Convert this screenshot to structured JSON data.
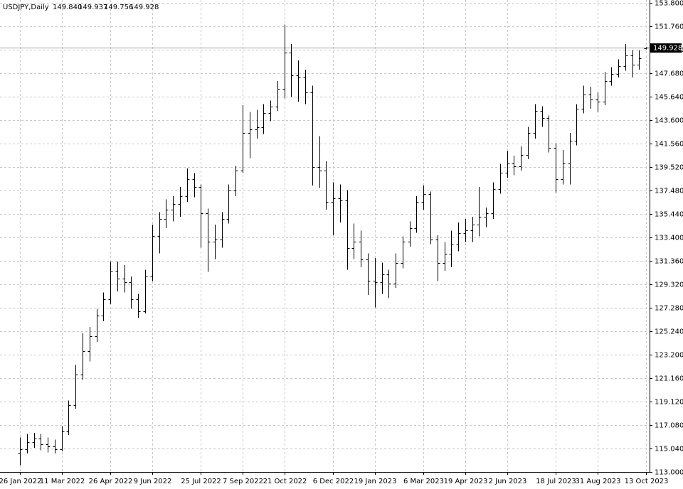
{
  "chart_data": {
    "type": "ohlc",
    "header": {
      "symbol": "USDJPY,Daily",
      "open": "149.840",
      "high": "149.937",
      "low": "149.756",
      "close": "149.928"
    },
    "last_price": {
      "value": 149.928,
      "label": "149.928"
    },
    "grid": true,
    "color": "#000000",
    "categories": [
      "26 Jan 2022",
      null,
      null,
      null,
      null,
      null,
      "11 Mar 2022",
      null,
      null,
      null,
      null,
      null,
      null,
      "26 Apr 2022",
      null,
      null,
      null,
      null,
      null,
      "9 Jun 2022",
      null,
      null,
      null,
      null,
      null,
      null,
      "25 Jul 2022",
      null,
      null,
      null,
      null,
      null,
      "7 Sep 2022",
      null,
      null,
      null,
      null,
      null,
      "21 Oct 2022",
      null,
      null,
      null,
      null,
      null,
      null,
      "6 Dec 2022",
      null,
      null,
      null,
      null,
      null,
      "19 Jan 2023",
      null,
      null,
      null,
      null,
      null,
      null,
      "6 Mar 2023",
      null,
      null,
      null,
      null,
      null,
      "19 Apr 2023",
      null,
      null,
      null,
      null,
      null,
      "2 Jun 2023",
      null,
      null,
      null,
      null,
      null,
      null,
      "18 Jul 2023",
      null,
      null,
      null,
      null,
      null,
      "31 Aug 2023",
      null,
      null,
      null,
      null,
      null,
      null,
      "13 Oct 2023"
    ],
    "open": [
      114.6,
      115.0,
      115.6,
      115.9,
      115.4,
      115.2,
      115.0,
      116.5,
      118.8,
      121.5,
      123.5,
      124.8,
      126.6,
      128.0,
      130.5,
      129.8,
      129.5,
      128.0,
      127.0,
      130.0,
      133.5,
      135.0,
      135.8,
      136.3,
      137.0,
      138.5,
      137.8,
      135.5,
      133.0,
      133.2,
      135.0,
      137.5,
      139.2,
      142.5,
      142.8,
      143.0,
      144.2,
      144.8,
      146.3,
      149.5,
      147.5,
      147.3,
      146.0,
      139.5,
      139.2,
      136.5,
      136.8,
      136.6,
      132.5,
      133.0,
      131.5,
      129.6,
      129.5,
      130.2,
      129.4,
      131.2,
      133.0,
      134.2,
      136.5,
      137.2,
      133.2,
      131.2,
      132.0,
      132.8,
      133.8,
      134.0,
      134.5,
      135.2,
      135.5,
      137.6,
      139.0,
      139.8,
      139.6,
      140.6,
      142.5,
      144.4,
      143.8,
      141.2,
      138.5,
      139.8,
      141.8,
      144.6,
      145.8,
      145.4,
      145.2,
      147.0,
      147.6,
      148.3,
      149.2,
      148.4,
      149.84
    ],
    "high": [
      116.0,
      116.3,
      116.4,
      116.3,
      116.0,
      115.8,
      117.0,
      119.2,
      122.3,
      125.1,
      125.6,
      127.2,
      128.6,
      131.3,
      131.3,
      131.0,
      130.0,
      128.5,
      130.6,
      134.5,
      135.6,
      136.7,
      137.0,
      137.8,
      139.4,
      139.0,
      138.0,
      135.9,
      134.5,
      135.6,
      138.0,
      139.6,
      144.9,
      144.3,
      144.5,
      145.0,
      145.3,
      147.0,
      151.9,
      150.2,
      148.8,
      148.0,
      146.6,
      142.2,
      140.0,
      138.2,
      138.0,
      137.5,
      134.6,
      134.0,
      132.0,
      131.6,
      131.2,
      130.6,
      132.0,
      133.5,
      134.8,
      137.0,
      137.9,
      137.4,
      133.6,
      133.0,
      134.0,
      134.7,
      135.0,
      135.2,
      137.8,
      136.0,
      138.2,
      139.8,
      140.9,
      140.5,
      141.3,
      143.0,
      145.0,
      144.8,
      144.0,
      141.6,
      141.0,
      142.5,
      145.0,
      146.6,
      146.5,
      146.0,
      147.8,
      148.2,
      148.9,
      150.2,
      149.7,
      149.7,
      149.937
    ],
    "low": [
      113.6,
      114.6,
      115.1,
      114.9,
      114.7,
      114.6,
      114.8,
      116.2,
      118.5,
      121.0,
      122.6,
      124.3,
      126.1,
      127.6,
      128.7,
      128.6,
      127.2,
      126.4,
      126.8,
      129.6,
      132.0,
      134.2,
      134.8,
      135.2,
      136.5,
      136.9,
      132.5,
      130.4,
      131.5,
      132.5,
      134.6,
      137.0,
      139.0,
      140.3,
      142.0,
      142.4,
      143.5,
      144.4,
      145.5,
      145.6,
      145.2,
      145.0,
      137.9,
      137.7,
      135.8,
      133.6,
      134.7,
      130.6,
      131.5,
      130.8,
      128.4,
      127.3,
      128.5,
      128.1,
      129.0,
      130.7,
      132.6,
      133.8,
      135.8,
      132.8,
      129.6,
      130.5,
      130.8,
      132.2,
      133.0,
      133.0,
      133.5,
      134.3,
      135.0,
      137.2,
      138.6,
      138.8,
      139.2,
      140.2,
      142.0,
      143.0,
      140.8,
      137.3,
      138.0,
      138.0,
      141.4,
      144.2,
      144.6,
      144.3,
      144.9,
      146.6,
      147.3,
      147.9,
      147.3,
      148.0,
      149.756
    ],
    "close": [
      115.0,
      115.6,
      115.9,
      115.4,
      115.2,
      115.0,
      116.5,
      118.8,
      121.5,
      123.5,
      124.8,
      126.6,
      128.0,
      130.5,
      129.8,
      129.5,
      128.0,
      127.0,
      130.0,
      133.5,
      135.0,
      135.8,
      136.3,
      137.0,
      138.5,
      137.8,
      135.5,
      133.0,
      133.2,
      135.0,
      137.5,
      139.2,
      142.5,
      142.8,
      143.0,
      144.2,
      144.8,
      146.3,
      149.5,
      147.5,
      147.3,
      146.0,
      139.5,
      139.2,
      136.5,
      136.8,
      136.6,
      132.5,
      133.0,
      131.5,
      129.6,
      129.5,
      130.2,
      129.4,
      131.2,
      133.0,
      134.2,
      136.5,
      137.2,
      133.2,
      131.2,
      132.0,
      132.8,
      133.8,
      134.0,
      134.5,
      135.2,
      135.5,
      137.6,
      139.0,
      139.8,
      139.6,
      140.6,
      142.5,
      144.4,
      143.8,
      141.2,
      138.5,
      139.8,
      141.8,
      144.6,
      145.8,
      145.4,
      145.2,
      147.0,
      147.6,
      148.3,
      149.2,
      148.4,
      149.0,
      149.928
    ],
    "ylim": [
      113.0,
      153.8
    ],
    "yticks": [
      {
        "value": 113.0,
        "label": "113.000"
      },
      {
        "value": 115.04,
        "label": "115.040"
      },
      {
        "value": 117.08,
        "label": "117.080"
      },
      {
        "value": 119.12,
        "label": "119.120"
      },
      {
        "value": 121.16,
        "label": "121.160"
      },
      {
        "value": 123.2,
        "label": "123.200"
      },
      {
        "value": 125.24,
        "label": "125.240"
      },
      {
        "value": 127.28,
        "label": "127.280"
      },
      {
        "value": 129.32,
        "label": "129.320"
      },
      {
        "value": 131.36,
        "label": "131.360"
      },
      {
        "value": 133.4,
        "label": "133.400"
      },
      {
        "value": 135.44,
        "label": "135.440"
      },
      {
        "value": 137.48,
        "label": "137.480"
      },
      {
        "value": 139.52,
        "label": "139.520"
      },
      {
        "value": 141.56,
        "label": "141.560"
      },
      {
        "value": 143.6,
        "label": "143.600"
      },
      {
        "value": 145.64,
        "label": "145.640"
      },
      {
        "value": 147.68,
        "label": "147.680"
      },
      {
        "value": 149.72,
        "label": "149.720"
      },
      {
        "value": 151.76,
        "label": "151.760"
      },
      {
        "value": 153.8,
        "label": "153.800"
      }
    ]
  }
}
